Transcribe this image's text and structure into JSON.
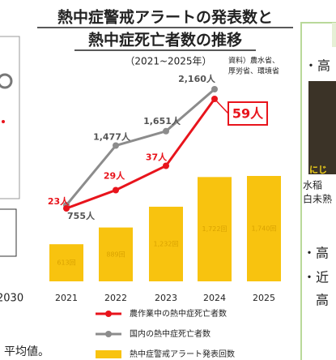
{
  "chart_data": {
    "type": "combo",
    "title_lines": [
      "熱中症警戒アラートの発表数と",
      "熱中症死亡者数の推移"
    ],
    "subtitle": "（2021~2025年）",
    "source_lines": [
      "資料）農水省、",
      "厚労省、環境省"
    ],
    "categories": [
      "2021",
      "2022",
      "2023",
      "2024",
      "2025"
    ],
    "series": [
      {
        "name": "熱中症警戒アラート発表回数",
        "kind": "bar",
        "color": "#f8c30f",
        "values": [
          613,
          889,
          1232,
          1722,
          1740
        ],
        "value_labels": [
          "613回",
          "889回",
          "1,232回",
          "1,722回",
          "1,740回"
        ]
      },
      {
        "name": "国内の熱中症死亡者数",
        "kind": "line",
        "color": "#8c8c8c",
        "values": [
          755,
          1477,
          1651,
          2160,
          null
        ],
        "value_labels": [
          "755人",
          "1,477人",
          "1,651人",
          "2,160人",
          null
        ]
      },
      {
        "name": "農作業中の熱中症死亡者数",
        "kind": "line",
        "color": "#e8141c",
        "values": [
          23,
          29,
          37,
          59,
          null
        ],
        "value_labels": [
          "23人",
          "29人",
          "37人",
          "59人",
          null
        ]
      }
    ],
    "legend_order": [
      2,
      1,
      0
    ]
  },
  "left_panel": {
    "axis_label": "2030",
    "note": "平均値。"
  },
  "right_panel": {
    "bullet1": "・高",
    "photo_caption": "にじ",
    "line1": "水稲",
    "line2": "白未熟",
    "bullet2": "・高",
    "bullet3": "・近",
    "line3": "高"
  }
}
